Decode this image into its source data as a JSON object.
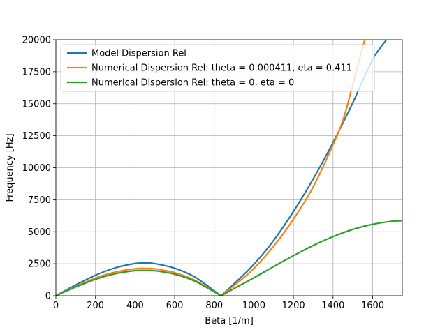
{
  "chart_data": {
    "type": "line",
    "title": "",
    "xlabel": "Beta [1/m]",
    "ylabel": "Frequency [Hz]",
    "xlim": [
      0,
      1750
    ],
    "ylim": [
      0,
      20000
    ],
    "xticks": [
      0,
      200,
      400,
      600,
      800,
      1000,
      1200,
      1400,
      1600
    ],
    "yticks": [
      0,
      2500,
      5000,
      7500,
      10000,
      12500,
      15000,
      17500,
      20000
    ],
    "grid": true,
    "legend_position": "top-left",
    "series": [
      {
        "name": "Model Dispersion Rel",
        "color": "#1f77b4",
        "x": [
          0,
          100,
          200,
          300,
          400,
          450,
          500,
          600,
          700,
          800,
          835,
          900,
          1000,
          1100,
          1200,
          1300,
          1400,
          1500,
          1600,
          1670
        ],
        "y": [
          0,
          840,
          1600,
          2180,
          2520,
          2560,
          2510,
          2150,
          1480,
          380,
          0,
          930,
          2450,
          4320,
          6580,
          9130,
          11970,
          15080,
          18450,
          20000
        ]
      },
      {
        "name": "Numerical Dispersion Rel: theta = 0.000411, eta = 0.411",
        "color": "#ff7f0e",
        "x": [
          0,
          100,
          200,
          300,
          400,
          450,
          500,
          600,
          700,
          800,
          835,
          900,
          1000,
          1100,
          1200,
          1300,
          1400,
          1450,
          1500,
          1560
        ],
        "y": [
          0,
          720,
          1380,
          1850,
          2110,
          2130,
          2100,
          1800,
          1230,
          320,
          0,
          800,
          2130,
          3870,
          5980,
          8510,
          11800,
          13700,
          16500,
          20000
        ]
      },
      {
        "name": "Numerical Dispersion Rel: theta = 0, eta = 0",
        "color": "#2ca02c",
        "x": [
          0,
          100,
          200,
          300,
          400,
          450,
          500,
          600,
          700,
          800,
          835,
          900,
          1000,
          1100,
          1200,
          1300,
          1400,
          1500,
          1600,
          1700,
          1750
        ],
        "y": [
          0,
          680,
          1280,
          1720,
          1960,
          1980,
          1950,
          1680,
          1150,
          300,
          0,
          560,
          1400,
          2280,
          3130,
          3930,
          4620,
          5180,
          5580,
          5820,
          5860
        ]
      }
    ]
  }
}
